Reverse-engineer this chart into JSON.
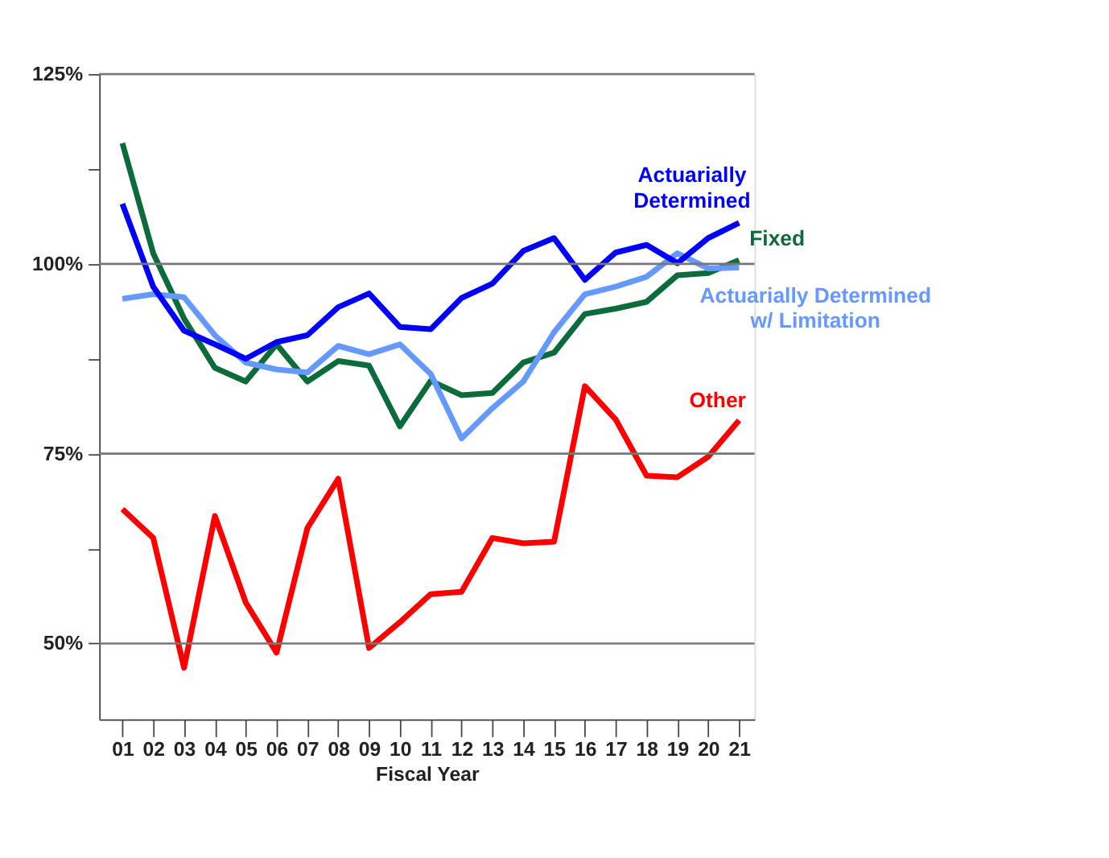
{
  "chart_data": {
    "type": "line",
    "xlabel": "Fiscal Year",
    "categories": [
      "01",
      "02",
      "03",
      "04",
      "05",
      "06",
      "07",
      "08",
      "09",
      "10",
      "11",
      "12",
      "13",
      "14",
      "15",
      "16",
      "17",
      "18",
      "19",
      "20",
      "21"
    ],
    "ylim": [
      40,
      125
    ],
    "yticks": [
      {
        "value": 50,
        "label": "50%"
      },
      {
        "value": 62.5,
        "label": null
      },
      {
        "value": 75,
        "label": "75%"
      },
      {
        "value": 87.5,
        "label": null
      },
      {
        "value": 100,
        "label": "100%"
      },
      {
        "value": 112.5,
        "label": null
      },
      {
        "value": 125,
        "label": "125%"
      }
    ],
    "grid": "y",
    "legend": false,
    "marker": "none",
    "line_style": "solid",
    "series": [
      {
        "name": "Other",
        "color": "#ff0000",
        "values": [
          67.7,
          63.9,
          46.8,
          66.8,
          55.4,
          48.8,
          65.2,
          71.7,
          49.4,
          52.8,
          56.5,
          56.8,
          63.9,
          63.2,
          63.4,
          83.9,
          79.5,
          72.1,
          71.9,
          74.6,
          79.4
        ]
      },
      {
        "name": "Fixed",
        "color": "#0b6b3a",
        "values": [
          115.9,
          101.4,
          92.8,
          86.3,
          84.5,
          89.4,
          84.5,
          87.2,
          86.6,
          78.6,
          84.6,
          82.7,
          83,
          87,
          88.3,
          93.4,
          94.1,
          95,
          98.5,
          98.8,
          100.5
        ]
      },
      {
        "name": "Actuarially Determined w/ Limitation",
        "color": "#6699ff",
        "values": [
          95.4,
          96,
          95.6,
          90.6,
          87,
          86.1,
          85.7,
          89.2,
          88.1,
          89.4,
          85.5,
          77,
          81,
          84.5,
          91,
          96,
          97,
          98.3,
          101.4,
          99.4,
          99.5
        ]
      },
      {
        "name": "Actuarially Determined",
        "color": "#0000ff",
        "values": [
          107.9,
          97,
          91.2,
          89.4,
          87.5,
          89.7,
          90.6,
          94.3,
          96.1,
          91.7,
          91.4,
          95.5,
          97.4,
          101.7,
          103.4,
          97.9,
          101.5,
          102.5,
          100.1,
          103.4,
          105.4
        ]
      }
    ]
  }
}
